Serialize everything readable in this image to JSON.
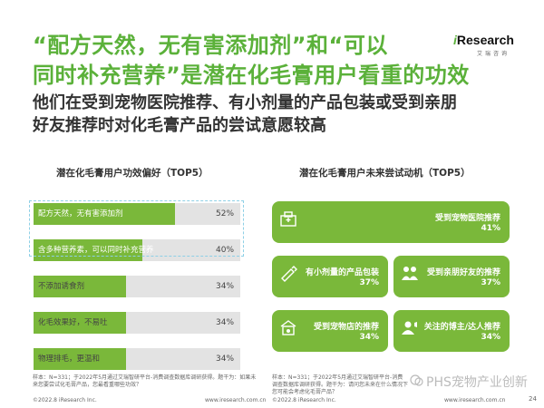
{
  "header": {
    "title_line1": "“配方天然，无有害添加剂”和“可以",
    "title_line2": "同时补充营养”是潜在化毛膏用户看重的功效",
    "subtitle_line1": "他们在受到宠物医院推荐、有小剂量的产品包装或受到亲朋",
    "subtitle_line2": "好友推荐时对化毛膏产品的尝试意愿较高",
    "logo_brand_prefix": "i",
    "logo_brand_rest": "Research",
    "logo_sub": "艾瑞咨询"
  },
  "colors": {
    "accent": "#5bb13a",
    "bar_fill": "#7ab83a",
    "bar_track": "#e3e3e3",
    "highlight_border": "#8ed0e6"
  },
  "left_panel": {
    "title": "潜在化毛膏用户功效偏好（TOP5）"
  },
  "right_panel": {
    "title": "潜在化毛膏用户未来尝试动机（TOP5）"
  },
  "chart_data": [
    {
      "type": "bar",
      "orientation": "horizontal",
      "title": "潜在化毛膏用户功效偏好（TOP5）",
      "categories": [
        "配方天然，无有害添加剂",
        "含多种营养素，可以同时补充营养",
        "不添加诱食剂",
        "化毛效果好，不易吐",
        "物理排毛，更温和"
      ],
      "values": [
        52,
        40,
        34,
        34,
        34
      ],
      "value_labels": [
        "52%",
        "40%",
        "34%",
        "34%",
        "34%"
      ],
      "unit": "%",
      "xlim": [
        0,
        100
      ],
      "highlighted": [
        0,
        1
      ]
    }
  ],
  "motivations": [
    {
      "label": "受到宠物医院推荐",
      "value": "41%",
      "icon": "hospital-icon"
    },
    {
      "label": "有小剂量的产品包装",
      "value": "37%",
      "icon": "tube-icon"
    },
    {
      "label": "受到亲朋好友的推荐",
      "value": "37%",
      "icon": "people-icon"
    },
    {
      "label": "受到宠物店的推荐",
      "value": "34%",
      "icon": "pet-store-icon"
    },
    {
      "label": "关注的博主/达人推荐",
      "value": "34%",
      "icon": "influencer-icon"
    }
  ],
  "footer": {
    "note_left": "样本：N=331；于2022年5月通过艾瑞智研平台-消费调查数据库调研获得。题干为：如果未来您要尝试化毛膏产品，您最看重哪些功效？",
    "note_right": "样本：N=331；于2022年5月通过艾瑞智研平台-消费调查数据库调研获得。题干为：请问您未来在什么情况下您可能会考虑化毛膏产品？",
    "copyright_left": "©2022.8 iResearch Inc.",
    "website_left": "www.iresearch.com.cn",
    "copyright_right": "©2022.8 iResearch Inc.",
    "website_right": "www.iresearch.com.cn",
    "page_number": "24",
    "watermark": "PHS宠物产业创新"
  }
}
